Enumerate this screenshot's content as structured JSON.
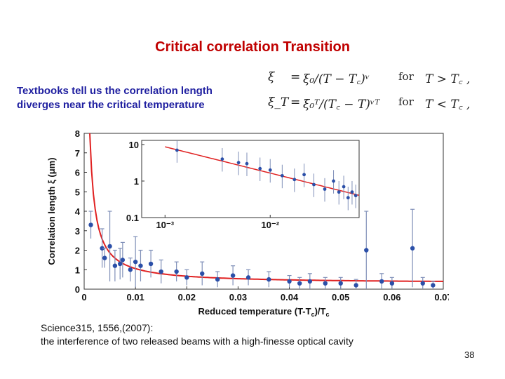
{
  "slide": {
    "title": "Critical correlation Transition",
    "intro_line1": "Textbooks tell us the correlation length",
    "intro_line2": "diverges near the critical temperature",
    "citation_line1": "Science315, 1556,(2007):",
    "citation_line2": "the interference of two released beams with a high-finesse optical cavity",
    "page_number": "38"
  },
  "formula": {
    "row1": {
      "lhs": "ξ",
      "eq": "=",
      "rhs": "ξ₀/(T − T꜀)ᵛ",
      "for": "for",
      "cond": "T > T꜀ ,"
    },
    "row2": {
      "lhs": "ξ_T",
      "eq": "=",
      "rhs": "ξ₀ᵀ/(T꜀ − T)ᵛᵀ",
      "for": "for",
      "cond": "T < T꜀ ,"
    }
  },
  "chart_data": {
    "type": "scatter",
    "xlabel": "Reduced temperature (T-T",
    "xlabel_sub": "c",
    "xlabel_end": ")/T",
    "xlabel_sub2": "c",
    "ylabel": "Correlation length ξ (μm)",
    "xlim": [
      0,
      0.07
    ],
    "ylim": [
      0,
      8
    ],
    "x_ticks": [
      "0",
      "0.01",
      "0.02",
      "0.03",
      "0.04",
      "0.05",
      "0.06",
      "0.07"
    ],
    "y_ticks": [
      "0",
      "1",
      "2",
      "3",
      "4",
      "5",
      "6",
      "7",
      "8"
    ],
    "marker_color": "#2b4fa8",
    "fit_color": "#e02020",
    "points": [
      {
        "x": 0.0013,
        "y": 3.3,
        "e": 0.7
      },
      {
        "x": 0.0035,
        "y": 2.1,
        "e": 1.0
      },
      {
        "x": 0.004,
        "y": 1.6,
        "e": 0.5
      },
      {
        "x": 0.005,
        "y": 2.2,
        "e": 1.8
      },
      {
        "x": 0.006,
        "y": 1.2,
        "e": 0.8
      },
      {
        "x": 0.007,
        "y": 1.3,
        "e": 0.8
      },
      {
        "x": 0.0075,
        "y": 1.5,
        "e": 0.9
      },
      {
        "x": 0.009,
        "y": 1.0,
        "e": 0.6
      },
      {
        "x": 0.01,
        "y": 1.4,
        "e": 1.3
      },
      {
        "x": 0.011,
        "y": 1.2,
        "e": 0.8
      },
      {
        "x": 0.013,
        "y": 1.3,
        "e": 0.7
      },
      {
        "x": 0.015,
        "y": 0.9,
        "e": 0.6
      },
      {
        "x": 0.018,
        "y": 0.9,
        "e": 0.5
      },
      {
        "x": 0.02,
        "y": 0.6,
        "e": 0.4
      },
      {
        "x": 0.023,
        "y": 0.8,
        "e": 0.6
      },
      {
        "x": 0.026,
        "y": 0.5,
        "e": 0.4
      },
      {
        "x": 0.029,
        "y": 0.7,
        "e": 0.5
      },
      {
        "x": 0.032,
        "y": 0.6,
        "e": 0.4
      },
      {
        "x": 0.036,
        "y": 0.5,
        "e": 0.4
      },
      {
        "x": 0.04,
        "y": 0.4,
        "e": 0.3
      },
      {
        "x": 0.042,
        "y": 0.3,
        "e": 0.3
      },
      {
        "x": 0.044,
        "y": 0.4,
        "e": 0.4
      },
      {
        "x": 0.047,
        "y": 0.3,
        "e": 0.3
      },
      {
        "x": 0.05,
        "y": 0.3,
        "e": 0.3
      },
      {
        "x": 0.053,
        "y": 0.2,
        "e": 0.3
      },
      {
        "x": 0.055,
        "y": 2.0,
        "e": 2.0
      },
      {
        "x": 0.058,
        "y": 0.4,
        "e": 0.4
      },
      {
        "x": 0.06,
        "y": 0.3,
        "e": 0.3
      },
      {
        "x": 0.064,
        "y": 2.1,
        "e": 2.0
      },
      {
        "x": 0.066,
        "y": 0.3,
        "e": 0.3
      },
      {
        "x": 0.068,
        "y": 0.2,
        "e": 0.2
      }
    ],
    "inset": {
      "type": "scatter",
      "x_scale": "log",
      "y_scale": "log",
      "x_ticks": [
        "10⁻³",
        "10⁻²"
      ],
      "y_ticks": [
        "0.1",
        "1",
        "10"
      ],
      "xlim": [
        0.0006,
        0.07
      ],
      "ylim": [
        0.1,
        13
      ],
      "points": [
        {
          "x": 0.0013,
          "y": 7.0
        },
        {
          "x": 0.0035,
          "y": 4.0
        },
        {
          "x": 0.005,
          "y": 3.2
        },
        {
          "x": 0.006,
          "y": 3.0
        },
        {
          "x": 0.008,
          "y": 2.2
        },
        {
          "x": 0.01,
          "y": 2.0
        },
        {
          "x": 0.013,
          "y": 1.4
        },
        {
          "x": 0.017,
          "y": 1.1
        },
        {
          "x": 0.021,
          "y": 1.5
        },
        {
          "x": 0.026,
          "y": 0.8
        },
        {
          "x": 0.033,
          "y": 0.6
        },
        {
          "x": 0.04,
          "y": 1.0
        },
        {
          "x": 0.045,
          "y": 0.5
        },
        {
          "x": 0.05,
          "y": 0.7
        },
        {
          "x": 0.055,
          "y": 0.35
        },
        {
          "x": 0.06,
          "y": 0.5
        },
        {
          "x": 0.065,
          "y": 0.4
        }
      ]
    }
  }
}
